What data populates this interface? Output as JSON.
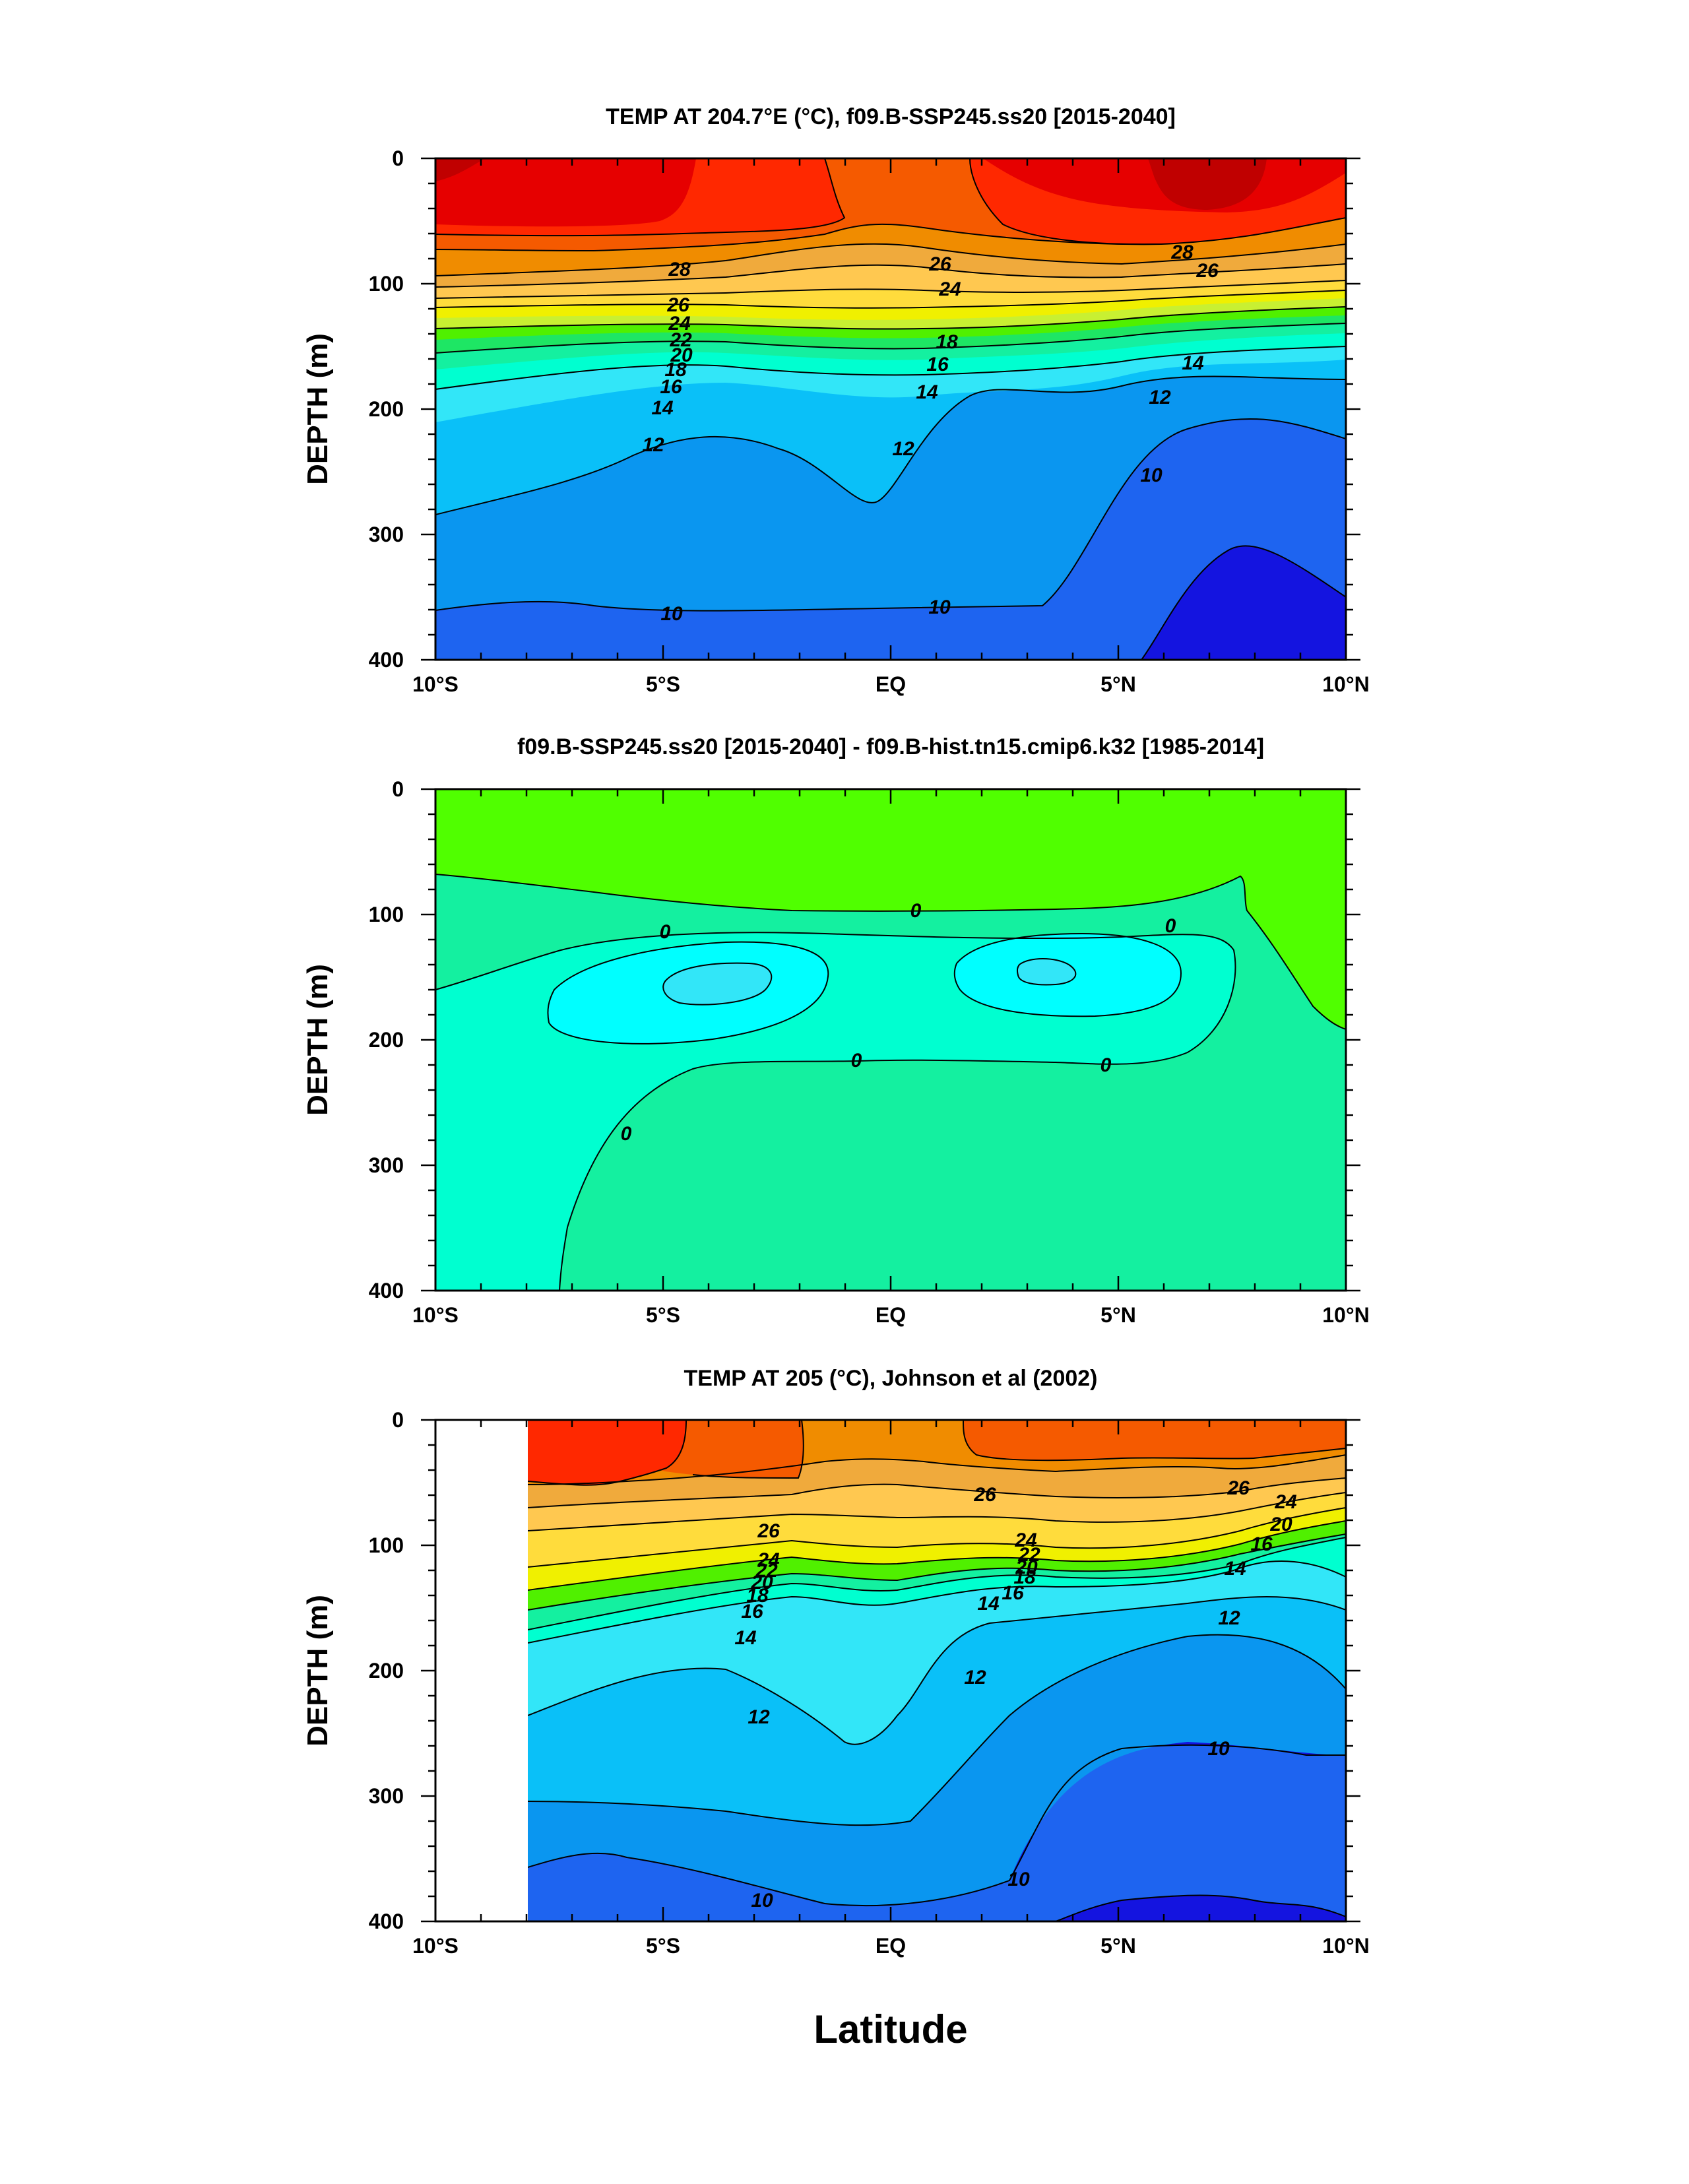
{
  "chart_data": [
    {
      "type": "heatmap",
      "subtype": "filled-contour depth-latitude section",
      "title": "TEMP AT 204.7°E (°C), f09.B-SSP245.ss20 [2015-2040]",
      "ylabel": "DEPTH (m)",
      "xlabel": "",
      "xlim": [
        -10,
        10
      ],
      "ylim": [
        400,
        0
      ],
      "yticks": [
        0,
        100,
        200,
        300,
        400
      ],
      "ytick_labels": [
        "0",
        "100",
        "200",
        "300",
        "400"
      ],
      "xticks": [
        -10,
        -5,
        0,
        5,
        10
      ],
      "xtick_labels": [
        "10°S",
        "5°S",
        "EQ",
        "5°N",
        "10°N"
      ],
      "colors": [
        "#1414e0",
        "#1e64f0",
        "#0a96f0",
        "#0ac0f8",
        "#32e6f8",
        "#00ffd0",
        "#14f0a0",
        "#1ee664",
        "#50f000",
        "#c8f032",
        "#f0f000",
        "#ffdc3c",
        "#ffc850",
        "#f0aa3c",
        "#f08c00",
        "#f55a00",
        "#ff2800",
        "#e60000",
        "#c00000"
      ],
      "x": [
        -10,
        -7.5,
        -5,
        -2.5,
        0,
        2.5,
        5,
        7.5,
        10
      ],
      "z_at_depth_20m": [
        29.5,
        29.5,
        29,
        28.2,
        28,
        28.2,
        29,
        29.3,
        28.8
      ],
      "isotherm_depths": [
        {
          "T": 28,
          "depth": [
            90,
            85,
            78,
            70,
            60,
            62,
            68,
            72,
            60
          ]
        },
        {
          "T": 26,
          "depth": [
            115,
            118,
            118,
            100,
            82,
            82,
            95,
            98,
            80
          ]
        },
        {
          "T": 24,
          "depth": [
            128,
            132,
            132,
            118,
            102,
            102,
            110,
            110,
            95
          ]
        },
        {
          "T": 22,
          "depth": [
            140,
            143,
            142,
            134,
            122,
            120,
            126,
            120,
            105
          ]
        },
        {
          "T": 20,
          "depth": [
            152,
            153,
            150,
            144,
            138,
            136,
            134,
            126,
            114
          ]
        },
        {
          "T": 18,
          "depth": [
            165,
            163,
            157,
            150,
            148,
            146,
            142,
            134,
            123
          ]
        },
        {
          "T": 16,
          "depth": [
            180,
            173,
            163,
            157,
            160,
            158,
            152,
            143,
            133
          ]
        },
        {
          "T": 14,
          "depth": [
            202,
            188,
            173,
            170,
            177,
            175,
            165,
            155,
            147
          ]
        },
        {
          "T": 12,
          "depth": [
            232,
            220,
            198,
            198,
            225,
            215,
            190,
            175,
            175
          ]
        },
        {
          "T": 10,
          "depth": [
            370,
            368,
            365,
            360,
            360,
            360,
            320,
            240,
            220
          ]
        }
      ],
      "contour_labels": [
        "28",
        "26",
        "24",
        "22",
        "20",
        "18",
        "16",
        "14",
        "12",
        "10"
      ]
    },
    {
      "type": "heatmap",
      "subtype": "filled-contour depth-latitude difference",
      "title": "f09.B-SSP245.ss20 [2015-2040] - f09.B-hist.tn15.cmip6.k32 [1985-2014]",
      "ylabel": "DEPTH (m)",
      "xlabel": "",
      "xlim": [
        -10,
        10
      ],
      "ylim": [
        400,
        0
      ],
      "yticks": [
        0,
        100,
        200,
        300,
        400
      ],
      "ytick_labels": [
        "0",
        "100",
        "200",
        "300",
        "400"
      ],
      "xticks": [
        -10,
        -5,
        0,
        5,
        10
      ],
      "xtick_labels": [
        "10°S",
        "5°S",
        "EQ",
        "5°N",
        "10°N"
      ],
      "regions": [
        {
          "name": "positive",
          "color": "#50ff00"
        },
        {
          "name": "zero",
          "color": "#14f0a0"
        },
        {
          "name": "negative",
          "color": "#00ffd0"
        },
        {
          "name": "more-negative",
          "color": "#00ffff"
        },
        {
          "name": "most-negative",
          "color": "#32e6f8"
        }
      ],
      "contour_labels": [
        "0",
        "0",
        "0",
        "0",
        "0",
        "0"
      ]
    },
    {
      "type": "heatmap",
      "subtype": "filled-contour depth-latitude section (observations)",
      "title": "TEMP AT 205 (°C), Johnson et al (2002)",
      "ylabel": "DEPTH (m)",
      "xlabel": "Latitude",
      "xlim": [
        -10,
        10
      ],
      "ylim": [
        400,
        0
      ],
      "data_xrange": [
        -8,
        10
      ],
      "yticks": [
        0,
        100,
        200,
        300,
        400
      ],
      "ytick_labels": [
        "0",
        "100",
        "200",
        "300",
        "400"
      ],
      "xticks": [
        -10,
        -5,
        0,
        5,
        10
      ],
      "xtick_labels": [
        "10°S",
        "5°S",
        "EQ",
        "5°N",
        "10°N"
      ],
      "x": [
        -8,
        -5.5,
        -3,
        -0.5,
        2,
        4.5,
        7,
        10
      ],
      "isotherm_depths": [
        {
          "T": 28,
          "depth": [
            85,
            60,
            20,
            0,
            0,
            0,
            20,
            20
          ]
        },
        {
          "T": 26,
          "depth": [
            100,
            100,
            80,
            45,
            60,
            70,
            60,
            40
          ]
        },
        {
          "T": 24,
          "depth": [
            120,
            120,
            110,
            95,
            100,
            95,
            70,
            55
          ]
        },
        {
          "T": 22,
          "depth": [
            150,
            140,
            122,
            112,
            118,
            112,
            90,
            65
          ]
        },
        {
          "T": 20,
          "depth": [
            175,
            152,
            135,
            125,
            135,
            132,
            105,
            78
          ]
        },
        {
          "T": 18,
          "depth": [
            195,
            167,
            145,
            138,
            150,
            150,
            120,
            90
          ]
        },
        {
          "T": 16,
          "depth": [
            210,
            180,
            155,
            150,
            160,
            158,
            130,
            100
          ]
        },
        {
          "T": 14,
          "depth": [
            230,
            195,
            175,
            180,
            170,
            168,
            145,
            115
          ]
        },
        {
          "T": 12,
          "depth": [
            285,
            255,
            230,
            265,
            215,
            190,
            175,
            160
          ]
        },
        {
          "T": 10,
          "depth": [
            345,
            350,
            365,
            368,
            355,
            272,
            262,
            272
          ]
        }
      ],
      "contour_labels": [
        "26",
        "24",
        "22",
        "20",
        "18",
        "16",
        "14",
        "12",
        "10"
      ]
    }
  ],
  "figure": {
    "xlabel": "Latitude"
  }
}
